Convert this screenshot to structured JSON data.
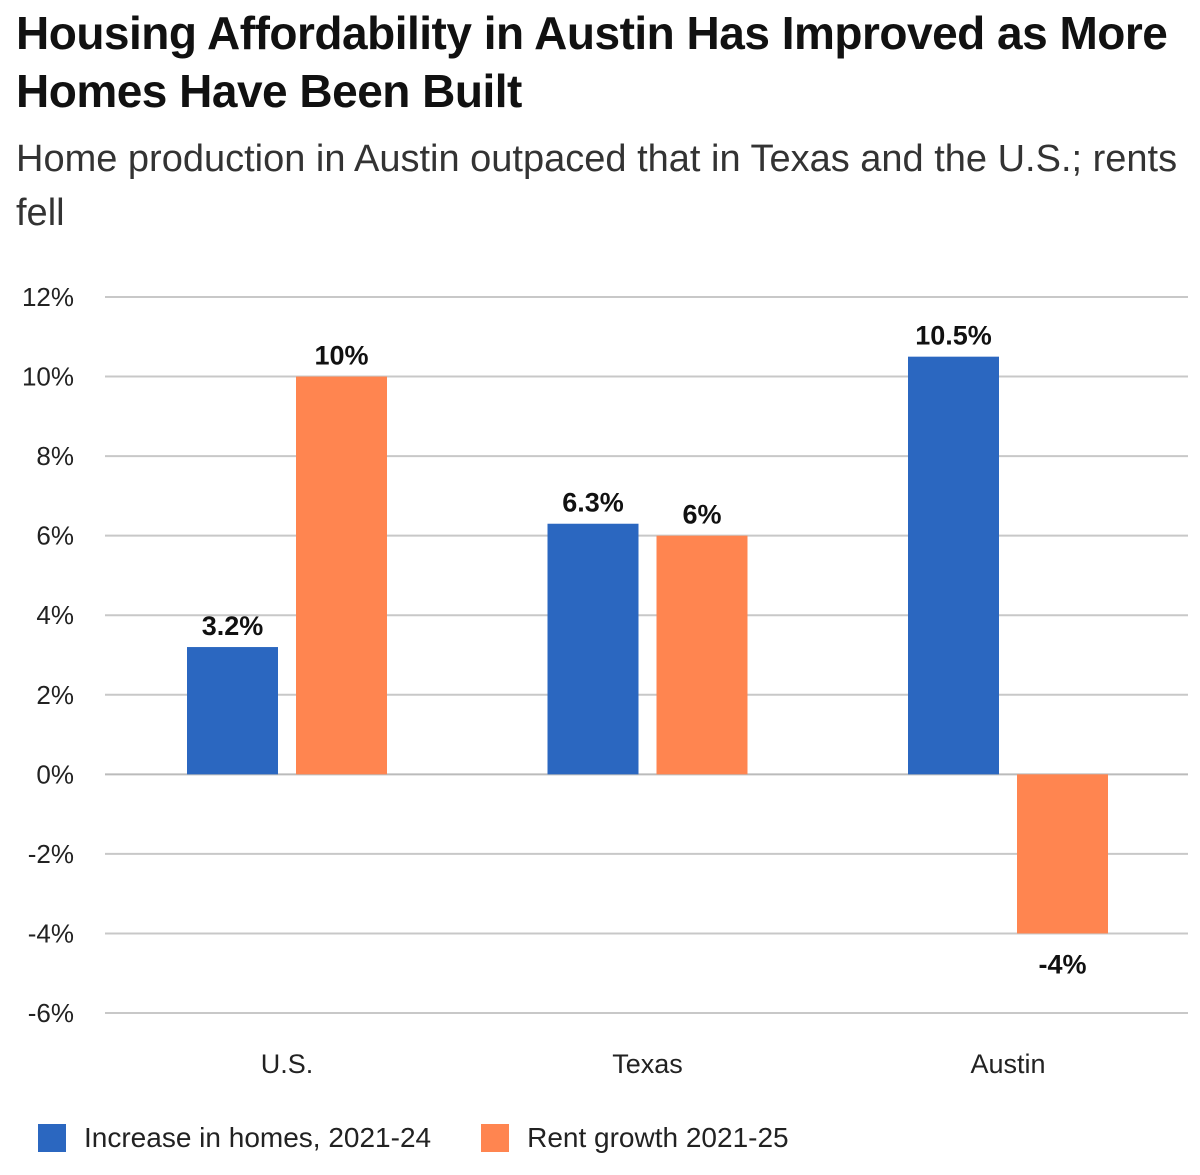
{
  "title": "Housing Affordability in Austin Has Improved as More Homes Have Been Built",
  "subtitle": "Home production in Austin outpaced that in Texas and the U.S.; rents fell",
  "chart_data": {
    "type": "bar",
    "title": "Housing Affordability in Austin Has Improved as More Homes Have Been Built",
    "subtitle": "Home production in Austin outpaced that in Texas and the U.S.; rents fell",
    "categories": [
      "U.S.",
      "Texas",
      "Austin"
    ],
    "series": [
      {
        "name": "Increase in homes, 2021-24",
        "values": [
          3.2,
          6.3,
          10.5
        ],
        "labels": [
          "3.2%",
          "6.3%",
          "10.5%"
        ],
        "color": "#2b67c0"
      },
      {
        "name": "Rent growth 2021-25",
        "values": [
          10,
          6,
          -4
        ],
        "labels": [
          "10%",
          "6%",
          "-4%"
        ],
        "color": "#ff8550"
      }
    ],
    "ylim": [
      -6,
      12
    ],
    "yticks": [
      12,
      10,
      8,
      6,
      4,
      2,
      0,
      -2,
      -4,
      -6
    ],
    "ytick_labels": [
      "12%",
      "10%",
      "8%",
      "6%",
      "4%",
      "2%",
      "0%",
      "-2%",
      "-4%",
      "-6%"
    ],
    "xlabel": "",
    "ylabel": "",
    "grid": true,
    "legend": "bottom-left"
  }
}
